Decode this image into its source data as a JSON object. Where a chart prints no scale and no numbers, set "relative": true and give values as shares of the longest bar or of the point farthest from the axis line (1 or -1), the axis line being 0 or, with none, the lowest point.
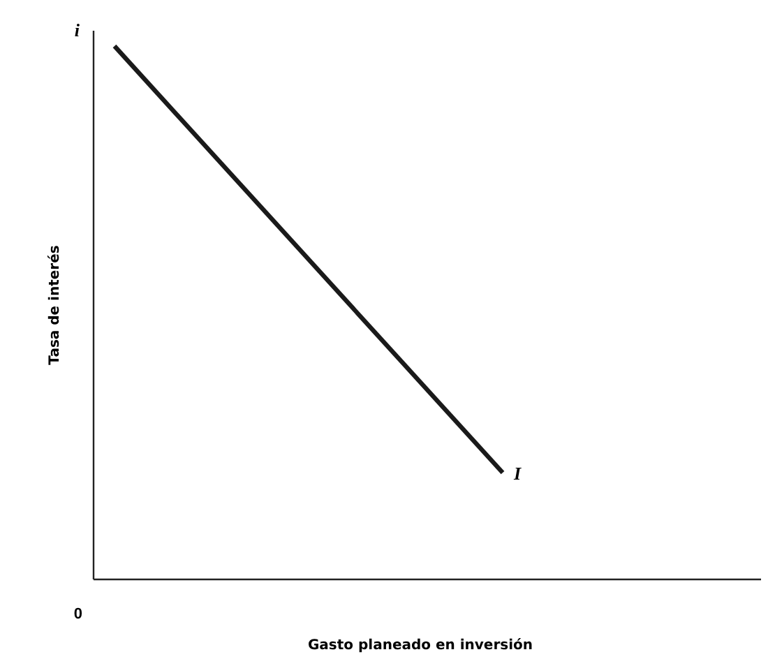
{
  "chart_data": {
    "type": "line",
    "relative": true,
    "xlabel": "Gasto planeado en inversión",
    "ylabel": "Tasa de interés",
    "categories": [
      null,
      null,
      null,
      null,
      null,
      null,
      null,
      null,
      null,
      null,
      null,
      null,
      null,
      null,
      null,
      null,
      null
    ],
    "series": [
      {
        "color": "#1a1a1a",
        "values": [
          1,
          null,
          null,
          null,
          null,
          null,
          null,
          null,
          null,
          null,
          0.2,
          null,
          null,
          null,
          null,
          null,
          null
        ]
      }
    ],
    "annotations": [
      "i",
      "0",
      "I"
    ],
    "line_style": "solid"
  }
}
